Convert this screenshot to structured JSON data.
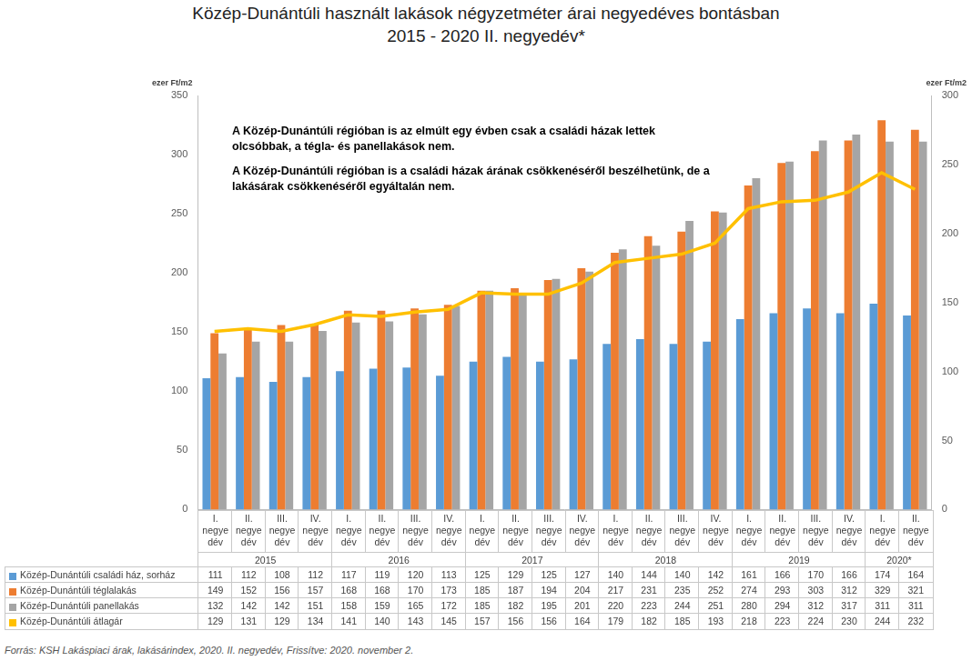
{
  "chart_data": {
    "type": "bar",
    "title": [
      "Közép-Dunántúli használt lakások négyzetméter árai negyedéves bontásban",
      "2015 - 2020 II. negyedév*"
    ],
    "annotations": [
      "A Közép-Dunántúli régióban is az elmúlt egy évben csak a családi házak lettek olcsóbbak, a tégla- és panellakások nem.",
      "A Közép-Dunántúli régióban is a családi házak árának csökkenéséről beszélhetünk, de a lakásárak csökkenéséről egyáltalán nem."
    ],
    "y_label": "ezer Ft/m2",
    "y2_label": "ezer Ft/m2",
    "source": "Forrás: KSH Lakáspiaci árak, lakásárindex, 2020. II. negyedév, Frissítve: 2020. november 2.",
    "categories": [
      "I. negyedév",
      "II. negyedév",
      "III. negyedév",
      "IV. negyedév",
      "I. negyedév",
      "II. negyedév",
      "III. negyedév",
      "IV. negyedév",
      "I. negyedév",
      "II. negyedév",
      "III. negyedév",
      "IV. negyedév",
      "I. negyedév",
      "II. negyedév",
      "III. negyedév",
      "IV. negyedév",
      "I. negyedév",
      "II. negyedév",
      "III. negyedév",
      "IV. negyedév",
      "I. negyedév",
      "II. negyedév"
    ],
    "category_groups": [
      {
        "name": "2015",
        "count": 4
      },
      {
        "name": "2016",
        "count": 4
      },
      {
        "name": "2017",
        "count": 4
      },
      {
        "name": "2018",
        "count": 4
      },
      {
        "name": "2019",
        "count": 4
      },
      {
        "name": "2020*",
        "count": 2
      }
    ],
    "series": [
      {
        "name": "Közép-Dunántúli családi ház, sorház",
        "type": "bar",
        "color": "#5b9bd5",
        "values": [
          111,
          112,
          108,
          112,
          117,
          119,
          120,
          113,
          125,
          129,
          125,
          127,
          140,
          144,
          140,
          142,
          161,
          166,
          170,
          166,
          174,
          164
        ]
      },
      {
        "name": "Közép-Dunántúli téglalakás",
        "type": "bar",
        "color": "#ed7d31",
        "values": [
          149,
          152,
          156,
          157,
          168,
          168,
          170,
          173,
          185,
          187,
          194,
          204,
          217,
          231,
          235,
          252,
          274,
          293,
          303,
          312,
          329,
          321
        ]
      },
      {
        "name": "Közép-Dunántúli panellakás",
        "type": "bar",
        "color": "#a5a5a5",
        "values": [
          132,
          142,
          142,
          151,
          158,
          159,
          165,
          172,
          185,
          182,
          195,
          201,
          220,
          223,
          244,
          251,
          280,
          294,
          312,
          317,
          311,
          311
        ]
      },
      {
        "name": "Közép-Dunántúli átlagár",
        "type": "line",
        "axis": "y2",
        "color": "#ffc000",
        "values": [
          129,
          131,
          129,
          134,
          141,
          140,
          143,
          145,
          157,
          156,
          156,
          164,
          179,
          182,
          185,
          193,
          218,
          223,
          224,
          230,
          244,
          232
        ]
      }
    ],
    "ylim": [
      0,
      350
    ],
    "yticks": [
      0,
      50,
      100,
      150,
      200,
      250,
      300,
      350
    ],
    "y2lim": [
      0,
      300
    ],
    "y2ticks": [
      0,
      50,
      100,
      150,
      200,
      250,
      300
    ],
    "grid": false
  }
}
